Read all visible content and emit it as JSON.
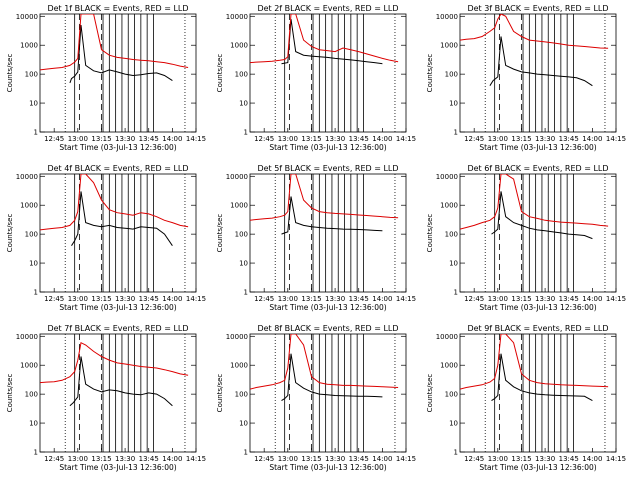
{
  "figure": {
    "background": "#ffffff",
    "axis_color": "#000000",
    "events_color": "#000000",
    "lld_color": "#dd0000"
  },
  "chart_data": [
    {
      "type": "line",
      "title": "Det 1f BLACK = Events, RED = LLD",
      "xlabel": "Start Time (03-Jul-13 12:36:00)",
      "ylabel": "Counts/sec",
      "x_ticks": [
        "12:45",
        "13:00",
        "13:15",
        "13:30",
        "13:45",
        "14:00",
        "14:15"
      ],
      "y_ticks": [
        "1",
        "10",
        "100",
        "1000",
        "10000"
      ],
      "ylim": [
        1,
        12000
      ],
      "y_scale": "log",
      "series": [
        {
          "name": "Events",
          "x": [
            "12:55",
            "12:56",
            "12:58",
            "13:00",
            "13:02",
            "13:05",
            "13:10",
            "13:15",
            "13:20",
            "13:25",
            "13:30",
            "13:35",
            "13:40",
            "13:45",
            "13:50",
            "13:55",
            "14:00"
          ],
          "y": [
            50,
            70,
            85,
            120,
            5000,
            200,
            130,
            110,
            140,
            120,
            100,
            90,
            95,
            105,
            110,
            90,
            60
          ]
        },
        {
          "name": "LLD",
          "x": [
            "12:36",
            "12:40",
            "12:45",
            "12:50",
            "12:55",
            "12:58",
            "13:00",
            "13:02",
            "13:05",
            "13:10",
            "13:15",
            "13:20",
            "13:25",
            "13:30",
            "13:35",
            "13:40",
            "13:45",
            "13:50",
            "13:55",
            "14:00",
            "14:05",
            "14:10"
          ],
          "y": [
            140,
            150,
            160,
            170,
            200,
            260,
            350,
            12000,
            12000,
            12000,
            700,
            450,
            380,
            350,
            320,
            300,
            290,
            270,
            250,
            220,
            190,
            170
          ]
        }
      ]
    },
    {
      "type": "line",
      "title": "Det 2f BLACK = Events, RED = LLD",
      "xlabel": "Start Time (03-Jul-13 12:36:00)",
      "ylabel": "Counts/sec",
      "x_ticks": [
        "12:45",
        "13:00",
        "13:15",
        "13:30",
        "13:45",
        "14:00",
        "14:15"
      ],
      "y_ticks": [
        "1",
        "10",
        "100",
        "1000",
        "10000"
      ],
      "ylim": [
        1,
        12000
      ],
      "y_scale": "log",
      "series": [
        {
          "name": "Events",
          "x": [
            "12:56",
            "12:58",
            "13:00",
            "13:02",
            "13:05",
            "13:10",
            "13:15",
            "13:20",
            "13:25",
            "13:30",
            "13:35",
            "13:40",
            "13:45",
            "13:50",
            "13:55",
            "14:00"
          ],
          "y": [
            230,
            240,
            250,
            8000,
            600,
            450,
            420,
            400,
            380,
            350,
            330,
            310,
            290,
            270,
            250,
            230
          ]
        },
        {
          "name": "LLD",
          "x": [
            "12:36",
            "12:40",
            "12:45",
            "12:50",
            "12:55",
            "12:58",
            "13:00",
            "13:02",
            "13:05",
            "13:10",
            "13:15",
            "13:20",
            "13:25",
            "13:30",
            "13:35",
            "13:40",
            "13:45",
            "13:50",
            "13:55",
            "14:00",
            "14:05",
            "14:10"
          ],
          "y": [
            250,
            260,
            270,
            280,
            300,
            320,
            400,
            12000,
            12000,
            1500,
            900,
            700,
            650,
            600,
            800,
            700,
            600,
            500,
            420,
            350,
            300,
            270
          ]
        }
      ]
    },
    {
      "type": "line",
      "title": "Det 3f BLACK = Events, RED = LLD",
      "xlabel": "Start Time (03-Jul-13 12:36:00)",
      "ylabel": "Counts/sec",
      "x_ticks": [
        "12:45",
        "13:00",
        "13:15",
        "13:30",
        "13:45",
        "14:00",
        "14:15"
      ],
      "y_ticks": [
        "1",
        "10",
        "100",
        "1000",
        "10000"
      ],
      "ylim": [
        1,
        12000
      ],
      "y_scale": "log",
      "series": [
        {
          "name": "Events",
          "x": [
            "12:55",
            "12:57",
            "13:00",
            "13:02",
            "13:05",
            "13:10",
            "13:15",
            "13:20",
            "13:25",
            "13:30",
            "13:35",
            "13:40",
            "13:45",
            "13:50",
            "13:55",
            "14:00"
          ],
          "y": [
            40,
            60,
            80,
            2000,
            200,
            150,
            120,
            110,
            100,
            95,
            90,
            85,
            80,
            75,
            60,
            40
          ]
        },
        {
          "name": "LLD",
          "x": [
            "12:36",
            "12:40",
            "12:45",
            "12:50",
            "12:55",
            "12:58",
            "13:00",
            "13:02",
            "13:05",
            "13:10",
            "13:15",
            "13:20",
            "13:25",
            "13:30",
            "13:35",
            "13:40",
            "13:45",
            "13:50",
            "13:55",
            "14:00",
            "14:05",
            "14:10"
          ],
          "y": [
            1500,
            1600,
            1700,
            2000,
            3000,
            4000,
            8000,
            12000,
            10000,
            3000,
            2000,
            1500,
            1400,
            1300,
            1200,
            1100,
            1000,
            950,
            900,
            850,
            800,
            780
          ]
        }
      ]
    },
    {
      "type": "line",
      "title": "Det 4f BLACK = Events, RED = LLD",
      "xlabel": "Start Time (03-Jul-13 12:36:00)",
      "ylabel": "Counts/sec",
      "x_ticks": [
        "12:45",
        "13:00",
        "13:15",
        "13:30",
        "13:45",
        "14:00",
        "14:15"
      ],
      "y_ticks": [
        "1",
        "10",
        "100",
        "1000",
        "10000"
      ],
      "ylim": [
        1,
        12000
      ],
      "y_scale": "log",
      "series": [
        {
          "name": "Events",
          "x": [
            "12:56",
            "12:58",
            "13:00",
            "13:02",
            "13:05",
            "13:10",
            "13:15",
            "13:20",
            "13:25",
            "13:30",
            "13:35",
            "13:40",
            "13:45",
            "13:50",
            "13:55",
            "14:00"
          ],
          "y": [
            40,
            60,
            100,
            3000,
            250,
            200,
            180,
            200,
            170,
            160,
            150,
            180,
            170,
            160,
            100,
            40
          ]
        },
        {
          "name": "LLD",
          "x": [
            "12:36",
            "12:40",
            "12:45",
            "12:50",
            "12:55",
            "12:58",
            "13:00",
            "13:02",
            "13:05",
            "13:10",
            "13:15",
            "13:20",
            "13:25",
            "13:30",
            "13:35",
            "13:40",
            "13:45",
            "13:50",
            "13:55",
            "14:00",
            "14:05",
            "14:10"
          ],
          "y": [
            140,
            150,
            160,
            170,
            200,
            300,
            600,
            12000,
            12000,
            6000,
            1500,
            700,
            550,
            500,
            450,
            550,
            500,
            400,
            300,
            250,
            200,
            180
          ]
        }
      ]
    },
    {
      "type": "line",
      "title": "Det 5f BLACK = Events, RED = LLD",
      "xlabel": "Start Time (03-Jul-13 12:36:00)",
      "ylabel": "Counts/sec",
      "x_ticks": [
        "12:45",
        "13:00",
        "13:15",
        "13:30",
        "13:45",
        "14:00",
        "14:15"
      ],
      "y_ticks": [
        "1",
        "10",
        "100",
        "1000",
        "10000"
      ],
      "ylim": [
        1,
        12000
      ],
      "y_scale": "log",
      "series": [
        {
          "name": "Events",
          "x": [
            "12:56",
            "12:58",
            "13:00",
            "13:02",
            "13:05",
            "13:10",
            "13:15",
            "13:20",
            "13:25",
            "13:30",
            "13:35",
            "13:40",
            "13:45",
            "13:50",
            "13:55",
            "14:00"
          ],
          "y": [
            100,
            110,
            120,
            2000,
            250,
            200,
            180,
            170,
            160,
            155,
            150,
            148,
            145,
            140,
            135,
            130
          ]
        },
        {
          "name": "LLD",
          "x": [
            "12:36",
            "12:40",
            "12:45",
            "12:50",
            "12:55",
            "12:58",
            "13:00",
            "13:02",
            "13:05",
            "13:10",
            "13:15",
            "13:20",
            "13:25",
            "13:30",
            "13:35",
            "13:40",
            "13:45",
            "13:50",
            "13:55",
            "14:00",
            "14:05",
            "14:10"
          ],
          "y": [
            300,
            320,
            340,
            360,
            400,
            450,
            600,
            12000,
            12000,
            1500,
            800,
            600,
            550,
            520,
            500,
            480,
            460,
            440,
            420,
            400,
            380,
            370
          ]
        }
      ]
    },
    {
      "type": "line",
      "title": "Det 6f BLACK = Events, RED = LLD",
      "xlabel": "Start Time (03-Jul-13 12:36:00)",
      "ylabel": "Counts/sec",
      "x_ticks": [
        "12:45",
        "13:00",
        "13:15",
        "13:30",
        "13:45",
        "14:00",
        "14:15"
      ],
      "y_ticks": [
        "1",
        "10",
        "100",
        "1000",
        "10000"
      ],
      "ylim": [
        1,
        12000
      ],
      "y_scale": "log",
      "series": [
        {
          "name": "Events",
          "x": [
            "12:56",
            "12:58",
            "13:00",
            "13:02",
            "13:05",
            "13:10",
            "13:15",
            "13:20",
            "13:25",
            "13:30",
            "13:35",
            "13:40",
            "13:45",
            "13:50",
            "13:55",
            "14:00"
          ],
          "y": [
            100,
            120,
            150,
            3000,
            400,
            250,
            200,
            160,
            140,
            130,
            120,
            110,
            100,
            95,
            90,
            70
          ]
        },
        {
          "name": "LLD",
          "x": [
            "12:36",
            "12:40",
            "12:45",
            "12:50",
            "12:55",
            "12:58",
            "13:00",
            "13:02",
            "13:05",
            "13:10",
            "13:15",
            "13:20",
            "13:25",
            "13:30",
            "13:35",
            "13:40",
            "13:45",
            "13:50",
            "13:55",
            "14:00",
            "14:05",
            "14:10"
          ],
          "y": [
            150,
            170,
            200,
            250,
            300,
            400,
            800,
            12000,
            12000,
            8000,
            600,
            400,
            350,
            300,
            280,
            260,
            250,
            240,
            230,
            220,
            200,
            190
          ]
        }
      ]
    },
    {
      "type": "line",
      "title": "Det 7f BLACK = Events, RED = LLD",
      "xlabel": "Start Time (03-Jul-13 12:36:00)",
      "ylabel": "Counts/sec",
      "x_ticks": [
        "12:45",
        "13:00",
        "13:15",
        "13:30",
        "13:45",
        "14:00",
        "14:15"
      ],
      "y_ticks": [
        "1",
        "10",
        "100",
        "1000",
        "10000"
      ],
      "ylim": [
        1,
        12000
      ],
      "y_scale": "log",
      "series": [
        {
          "name": "Events",
          "x": [
            "12:55",
            "12:57",
            "13:00",
            "13:02",
            "13:05",
            "13:10",
            "13:15",
            "13:20",
            "13:25",
            "13:30",
            "13:35",
            "13:40",
            "13:45",
            "13:50",
            "13:55",
            "14:00"
          ],
          "y": [
            40,
            50,
            80,
            2000,
            220,
            150,
            120,
            140,
            130,
            110,
            100,
            95,
            110,
            100,
            70,
            40
          ]
        },
        {
          "name": "LLD",
          "x": [
            "12:36",
            "12:40",
            "12:45",
            "12:50",
            "12:55",
            "12:58",
            "13:00",
            "13:02",
            "13:05",
            "13:10",
            "13:15",
            "13:20",
            "13:25",
            "13:30",
            "13:35",
            "13:40",
            "13:45",
            "13:50",
            "13:55",
            "14:00",
            "14:05",
            "14:10"
          ],
          "y": [
            250,
            260,
            270,
            300,
            400,
            600,
            1500,
            6000,
            5000,
            3000,
            2000,
            1500,
            1200,
            1100,
            1000,
            900,
            850,
            800,
            700,
            600,
            500,
            450
          ]
        }
      ]
    },
    {
      "type": "line",
      "title": "Det 8f BLACK = Events, RED = LLD",
      "xlabel": "Start Time (03-Jul-13 12:36:00)",
      "ylabel": "Counts/sec",
      "x_ticks": [
        "12:45",
        "13:00",
        "13:15",
        "13:30",
        "13:45",
        "14:00",
        "14:15"
      ],
      "y_ticks": [
        "1",
        "10",
        "100",
        "1000",
        "10000"
      ],
      "ylim": [
        1,
        12000
      ],
      "y_scale": "log",
      "series": [
        {
          "name": "Events",
          "x": [
            "12:56",
            "12:58",
            "13:00",
            "13:02",
            "13:05",
            "13:10",
            "13:15",
            "13:20",
            "13:25",
            "13:30",
            "13:35",
            "13:40",
            "13:45",
            "13:50",
            "13:55",
            "14:00"
          ],
          "y": [
            60,
            70,
            90,
            2500,
            250,
            160,
            120,
            100,
            95,
            90,
            88,
            86,
            85,
            84,
            83,
            80
          ]
        },
        {
          "name": "LLD",
          "x": [
            "12:36",
            "12:40",
            "12:45",
            "12:50",
            "12:55",
            "12:58",
            "13:00",
            "13:02",
            "13:05",
            "13:10",
            "13:15",
            "13:20",
            "13:25",
            "13:30",
            "13:35",
            "13:40",
            "13:45",
            "13:50",
            "13:55",
            "14:00",
            "14:05",
            "14:10"
          ],
          "y": [
            150,
            170,
            190,
            210,
            250,
            300,
            800,
            12000,
            12000,
            5000,
            400,
            250,
            220,
            210,
            200,
            200,
            195,
            190,
            185,
            180,
            175,
            170
          ]
        }
      ]
    },
    {
      "type": "line",
      "title": "Det 9f BLACK = Events, RED = LLD",
      "xlabel": "Start Time (03-Jul-13 12:36:00)",
      "ylabel": "Counts/sec",
      "x_ticks": [
        "12:45",
        "13:00",
        "13:15",
        "13:30",
        "13:45",
        "14:00",
        "14:15"
      ],
      "y_ticks": [
        "1",
        "10",
        "100",
        "1000",
        "10000"
      ],
      "ylim": [
        1,
        12000
      ],
      "y_scale": "log",
      "series": [
        {
          "name": "Events",
          "x": [
            "12:56",
            "12:58",
            "13:00",
            "13:02",
            "13:05",
            "13:10",
            "13:15",
            "13:20",
            "13:25",
            "13:30",
            "13:35",
            "13:40",
            "13:45",
            "13:50",
            "13:55",
            "14:00"
          ],
          "y": [
            60,
            70,
            90,
            2500,
            300,
            180,
            130,
            110,
            100,
            95,
            92,
            90,
            88,
            86,
            84,
            60
          ]
        },
        {
          "name": "LLD",
          "x": [
            "12:36",
            "12:40",
            "12:45",
            "12:50",
            "12:55",
            "12:58",
            "13:00",
            "13:02",
            "13:05",
            "13:10",
            "13:15",
            "13:20",
            "13:25",
            "13:30",
            "13:35",
            "13:40",
            "13:45",
            "13:50",
            "13:55",
            "14:00",
            "14:05",
            "14:10"
          ],
          "y": [
            150,
            170,
            190,
            210,
            260,
            350,
            1000,
            12000,
            12000,
            6000,
            500,
            300,
            250,
            230,
            220,
            210,
            205,
            200,
            195,
            190,
            185,
            180
          ]
        }
      ]
    }
  ]
}
